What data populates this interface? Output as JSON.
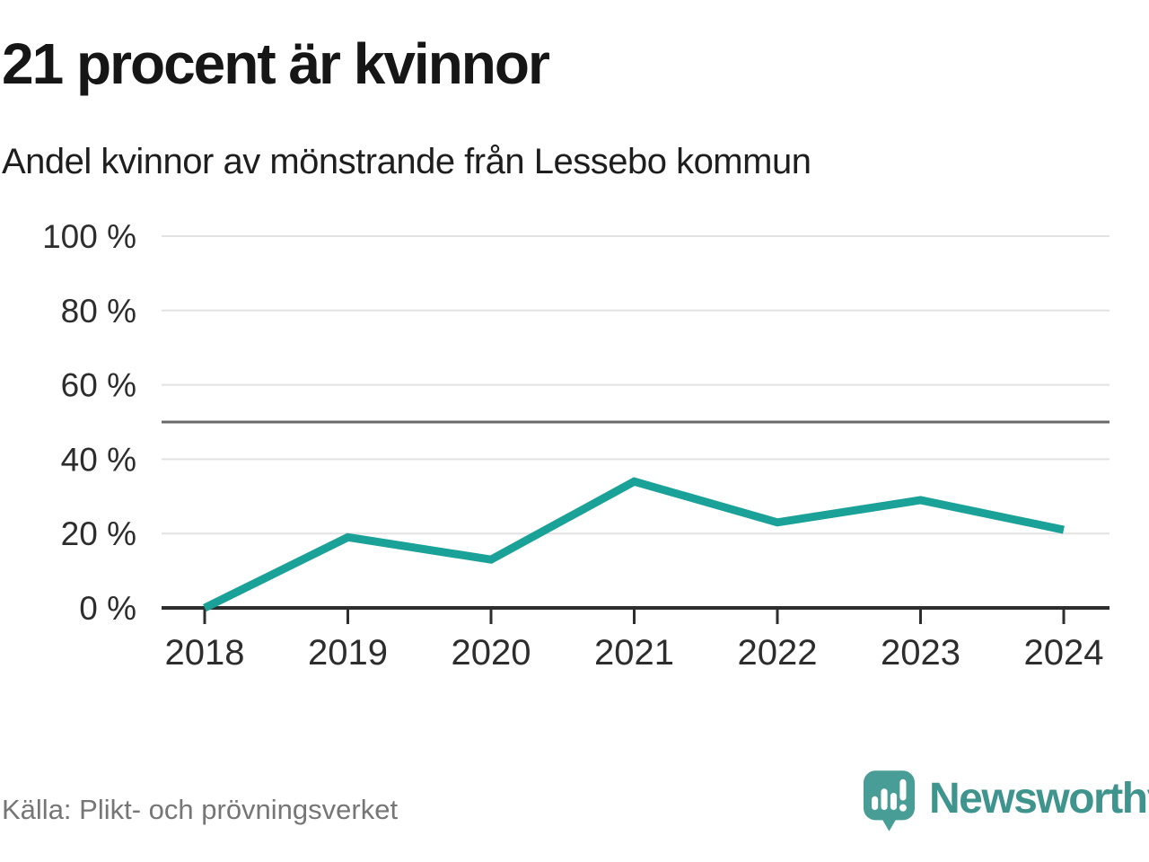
{
  "page": {
    "title": "21 procent är kvinnor",
    "subtitle": "Andel kvinnor av mönstrande från Lessebo kommun",
    "source": "Källa: Plikt- och prövningsverket",
    "brand": {
      "name": "Newsworthy",
      "icon": "newsworthy-speech-bubble-bar-chart-icon"
    }
  },
  "colors": {
    "accent_line": "#1AA299",
    "gridline": "#E2E2E2",
    "reference_line": "#696969",
    "axis": "#2E2E2E",
    "tick_label": "#2D2D2D",
    "title_text": "#161616",
    "subtitle_text": "#1E1E1E",
    "source_text": "#767676",
    "brand_teal": "#3F948E",
    "background": "#FFFFFF"
  },
  "chart_data": {
    "type": "line",
    "title": "21 procent är kvinnor",
    "subtitle": "Andel kvinnor av mönstrande från Lessebo kommun",
    "source": "Källa: Plikt- och prövningsverket",
    "x": [
      2018,
      2019,
      2020,
      2021,
      2022,
      2023,
      2024
    ],
    "series": [
      {
        "name": "Andel kvinnor av mönstrande",
        "values": [
          0,
          19,
          13,
          34,
          23,
          29,
          21
        ]
      }
    ],
    "ylim": [
      0,
      100
    ],
    "yticks": [
      0,
      20,
      40,
      60,
      80,
      100
    ],
    "ytick_suffix": " %",
    "xlabel": "",
    "ylabel": "",
    "reference_line": 50,
    "grid": "horizontal",
    "legend": "none",
    "line_color": "#1AA299"
  }
}
